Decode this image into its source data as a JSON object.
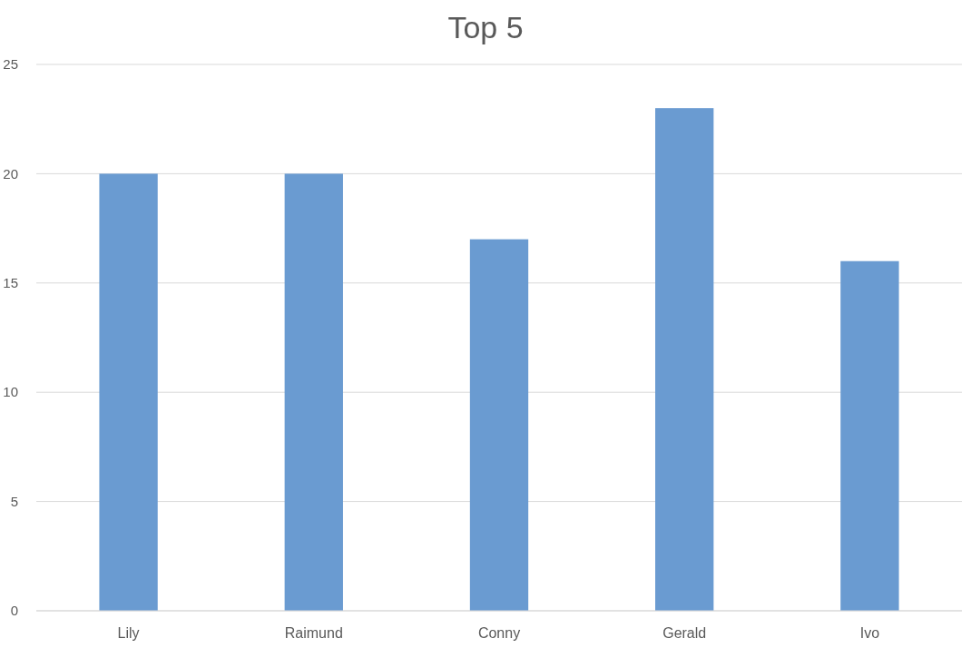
{
  "chart_data": {
    "type": "bar",
    "title": "Top 5",
    "categories": [
      "Lily",
      "Raimund",
      "Conny",
      "Gerald",
      "Ivo"
    ],
    "values": [
      20,
      20,
      17,
      23,
      16
    ],
    "color": "#6a9bd1",
    "ylim": [
      0,
      25
    ],
    "yticks": [
      0,
      5,
      10,
      15,
      20,
      25
    ],
    "grid": "y"
  }
}
